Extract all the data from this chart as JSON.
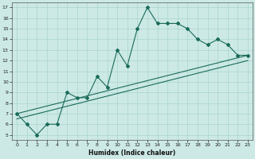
{
  "xlabel": "Humidex (Indice chaleur)",
  "xlim": [
    -0.5,
    23.5
  ],
  "ylim": [
    4.5,
    17.5
  ],
  "xticks": [
    0,
    1,
    2,
    3,
    4,
    5,
    6,
    7,
    8,
    9,
    10,
    11,
    12,
    13,
    14,
    15,
    16,
    17,
    18,
    19,
    20,
    21,
    22,
    23
  ],
  "yticks": [
    5,
    6,
    7,
    8,
    9,
    10,
    11,
    12,
    13,
    14,
    15,
    16,
    17
  ],
  "line_color": "#1a6b5a",
  "bg_color": "#cce9e5",
  "grid_color": "#aad4cf",
  "line1_x": [
    0,
    1,
    2,
    3,
    4,
    5,
    6,
    7,
    8,
    9,
    10,
    11,
    12,
    13,
    14,
    15,
    16,
    17,
    18,
    19,
    20,
    21,
    22,
    23
  ],
  "line1_y": [
    7,
    6,
    5,
    6,
    6,
    9,
    8.5,
    8.5,
    10.5,
    9.5,
    13,
    11.5,
    15,
    17,
    15.5,
    15.5,
    15.5,
    15,
    14,
    13.5,
    14,
    13.5,
    12.5,
    12.5
  ],
  "line2_x": [
    0,
    23
  ],
  "line2_y": [
    7,
    12.5
  ],
  "line3_x": [
    0,
    23
  ],
  "line3_y": [
    6.5,
    12
  ]
}
